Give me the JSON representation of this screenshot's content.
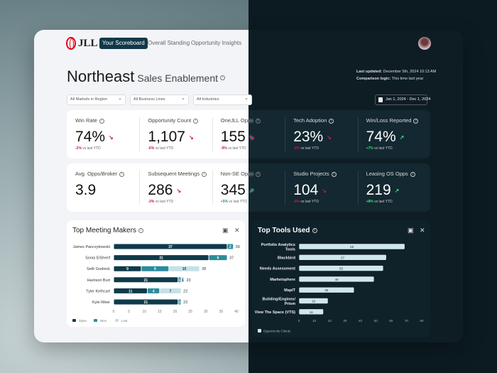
{
  "nav": {
    "logo": "JLL",
    "tabs": [
      {
        "label": "Your Scoreboard",
        "active": true
      },
      {
        "label": "Overall Standing"
      },
      {
        "label": "Opportunity Insights"
      }
    ]
  },
  "header": {
    "title": "Northeast",
    "subtitle": "Sales Enablement",
    "last_updated_label": "Last updated:",
    "last_updated": "December 5th, 2024 10:13 AM",
    "comparison_label": "Comparison logic:",
    "comparison": "This time last year"
  },
  "filters": [
    "All Markets in Region",
    "All Business Lines",
    "All Industries"
  ],
  "date_range": "Jan 1, 2024 - Dec 1, 2024",
  "kpis": [
    {
      "label": "Win Rate",
      "value": "74%",
      "delta": "-2%",
      "trend": "down",
      "note": "vs last YTD"
    },
    {
      "label": "Opportunity Count",
      "value": "1,107",
      "delta": "-6%",
      "trend": "down",
      "note": "vs last YTD"
    },
    {
      "label": "OneJLL Opps",
      "value": "155",
      "delta": "-9%",
      "trend": "down",
      "note": "vs last YTD"
    },
    {
      "label": "Tech Adoption",
      "value": "23%",
      "delta": "-3%",
      "trend": "down",
      "note": "vs last YTD"
    },
    {
      "label": "Win/Loss Reported",
      "value": "74%",
      "delta": "+7%",
      "trend": "up",
      "note": "vs last YTD"
    },
    {
      "label": "Avg. Opps/Broker",
      "value": "3.9"
    },
    {
      "label": "Subsequent Meetings",
      "value": "286",
      "delta": "-3%",
      "trend": "down",
      "note": "vs last YTD"
    },
    {
      "label": "Non-SE Opps",
      "value": "345",
      "delta": "+5%",
      "trend": "up",
      "note": "vs last YTD"
    },
    {
      "label": "Studio Projects",
      "value": "104",
      "delta": "-4%",
      "trend": "down",
      "note": "vs last YTD"
    },
    {
      "label": "Leasing OS Opps",
      "value": "219",
      "delta": "+8%",
      "trend": "up",
      "note": "vs last YTD"
    }
  ],
  "colors": {
    "open": "#0f3a49",
    "won": "#2a8c9b",
    "lost": "#c4e1e7",
    "tools": "#cfe7ed",
    "down": "#c2185b",
    "up": "#1aa260"
  },
  "chart_data": [
    {
      "type": "bar",
      "orientation": "horizontal",
      "stacked": true,
      "title": "Top Meeting Makers",
      "categories": [
        "James Panczykowski",
        "Sonia ElSherif",
        "Seth Godnick",
        "Harrison Burt",
        "Tyler Kethcart",
        "Kyle Riker"
      ],
      "series": [
        {
          "name": "Open",
          "values": [
            37,
            31,
            9,
            21,
            11,
            21
          ]
        },
        {
          "name": "Won",
          "values": [
            2,
            6,
            9,
            1,
            4,
            1
          ]
        },
        {
          "name": "Lost",
          "values": [
            0,
            0,
            10,
            1,
            7,
            0
          ]
        }
      ],
      "totals": [
        39,
        37,
        28,
        23,
        22,
        22
      ],
      "xlim": [
        0,
        40
      ],
      "xticks": [
        0,
        5,
        10,
        15,
        20,
        25,
        30,
        35,
        40
      ],
      "legend": "bottom-left"
    },
    {
      "type": "bar",
      "orientation": "horizontal",
      "title": "Top Tools Used",
      "categories": [
        "Portfolio Analytics Tools",
        "Blackbird",
        "Needs Assessment",
        "Marketsphere",
        "MapIT",
        "Building/Engines/ Prism",
        "View The Space (VTS)"
      ],
      "series": [
        {
          "name": "Opportunity Clients",
          "values": [
            69,
            57,
            55,
            49,
            36,
            19,
            16
          ]
        }
      ],
      "xlim": [
        0,
        80
      ],
      "xticks": [
        0,
        10,
        20,
        30,
        40,
        50,
        60,
        70,
        80
      ],
      "legend": "bottom-left"
    }
  ]
}
